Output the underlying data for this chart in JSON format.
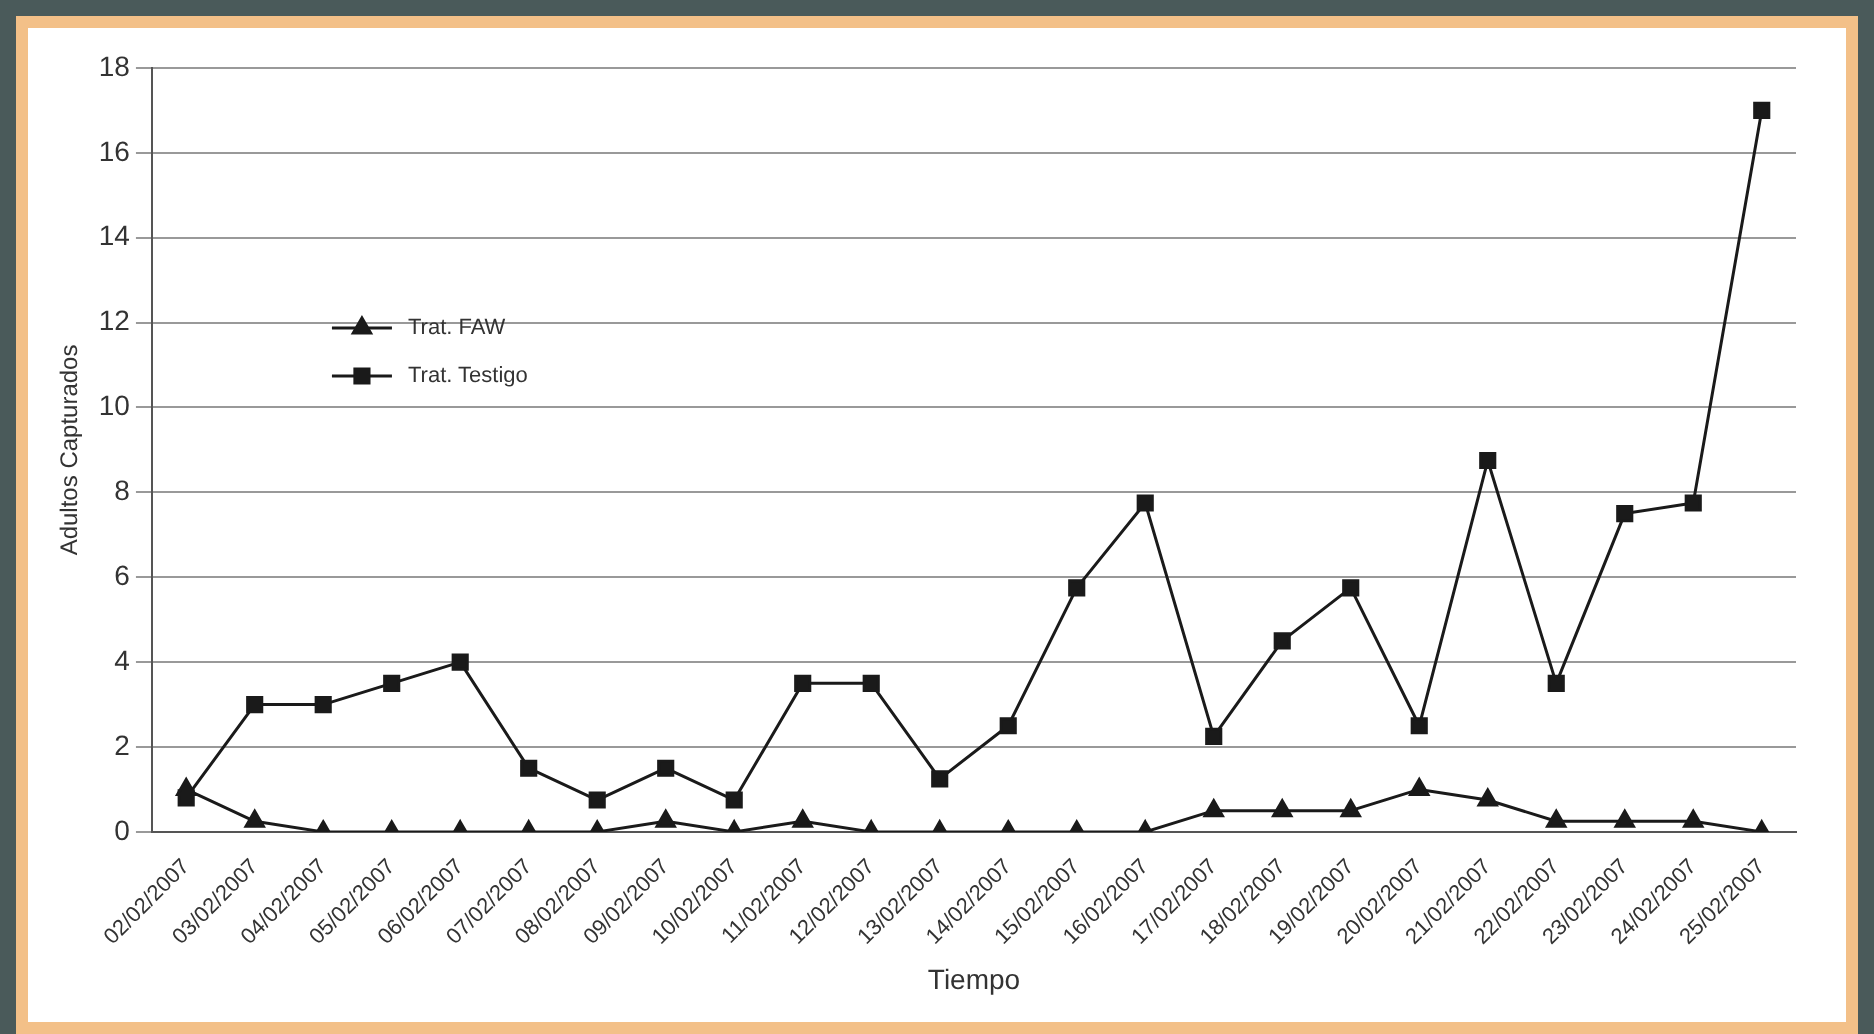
{
  "chart_data": {
    "type": "line",
    "xlabel": "Tiempo",
    "ylabel": "Adultos Capturados",
    "categories": [
      "02/02/2007",
      "03/02/2007",
      "04/02/2007",
      "05/02/2007",
      "06/02/2007",
      "07/02/2007",
      "08/02/2007",
      "09/02/2007",
      "10/02/2007",
      "11/02/2007",
      "12/02/2007",
      "13/02/2007",
      "14/02/2007",
      "15/02/2007",
      "16/02/2007",
      "17/02/2007",
      "18/02/2007",
      "19/02/2007",
      "20/02/2007",
      "21/02/2007",
      "22/02/2007",
      "23/02/2007",
      "24/02/2007",
      "25/02/2007"
    ],
    "series": [
      {
        "name": "Trat. FAW",
        "color": "#1a1a1a",
        "marker": "triangle",
        "values": [
          1,
          0.25,
          0,
          0,
          0,
          0,
          0,
          0.25,
          0,
          0.25,
          0,
          0,
          0,
          0,
          0,
          0.5,
          0.5,
          0.5,
          1,
          0.75,
          0.25,
          0.25,
          0.25,
          0
        ]
      },
      {
        "name": "Trat. Testigo",
        "color": "#1a1a1a",
        "marker": "square",
        "values": [
          0.8,
          3,
          3,
          3.5,
          4,
          1.5,
          0.75,
          1.5,
          0.75,
          3.5,
          3.5,
          1.25,
          2.5,
          5.75,
          7.75,
          2.25,
          4.5,
          5.75,
          2.5,
          8.75,
          3.5,
          7.5,
          7.75,
          17
        ]
      }
    ],
    "ylim": [
      0,
      18
    ],
    "yticks": [
      0,
      2,
      4,
      6,
      8,
      10,
      12,
      14,
      16,
      18
    ],
    "grid": "y",
    "legend": "left",
    "line_style": "solid"
  }
}
